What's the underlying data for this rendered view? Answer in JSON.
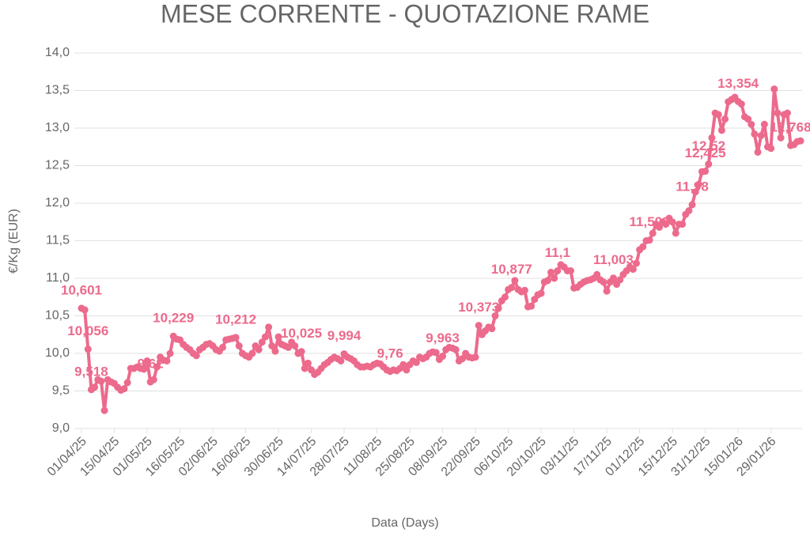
{
  "chart_data": {
    "type": "line",
    "title": "MESE CORRENTE - QUOTAZIONE RAME",
    "x_label": "Data (Days)",
    "y_label": "€/Kg (EUR)",
    "color": "#ec6a8c",
    "grid": true,
    "categories": [
      "01/04/25",
      null,
      null,
      null,
      null,
      null,
      null,
      null,
      null,
      null,
      "15/04/25",
      null,
      null,
      null,
      null,
      null,
      null,
      null,
      null,
      null,
      "01/05/25",
      null,
      null,
      null,
      null,
      null,
      null,
      null,
      null,
      null,
      "16/05/25",
      null,
      null,
      null,
      null,
      null,
      null,
      null,
      null,
      null,
      "02/06/25",
      null,
      null,
      null,
      null,
      null,
      null,
      null,
      null,
      null,
      "16/06/25",
      null,
      null,
      null,
      null,
      null,
      null,
      null,
      null,
      null,
      "30/06/25",
      null,
      null,
      null,
      null,
      null,
      null,
      null,
      null,
      null,
      "14/07/25",
      null,
      null,
      null,
      null,
      null,
      null,
      null,
      null,
      null,
      "28/07/25",
      null,
      null,
      null,
      null,
      null,
      null,
      null,
      null,
      null,
      "11/08/25",
      null,
      null,
      null,
      null,
      null,
      null,
      null,
      null,
      null,
      "25/08/25",
      null,
      null,
      null,
      null,
      null,
      null,
      null,
      null,
      null,
      "08/09/25",
      null,
      null,
      null,
      null,
      null,
      null,
      null,
      null,
      null,
      "22/09/25",
      null,
      null,
      null,
      null,
      null,
      null,
      null,
      null,
      null,
      "06/10/25",
      null,
      null,
      null,
      null,
      null,
      null,
      null,
      null,
      null,
      "20/10/25",
      null,
      null,
      null,
      null,
      null,
      null,
      null,
      null,
      null,
      "03/11/25",
      null,
      null,
      null,
      null,
      null,
      null,
      null,
      null,
      null,
      "17/11/25",
      null,
      null,
      null,
      null,
      null,
      null,
      null,
      null,
      null,
      "01/12/25",
      null,
      null,
      null,
      null,
      null,
      null,
      null,
      null,
      null,
      "15/12/25",
      null,
      null,
      null,
      null,
      null,
      null,
      null,
      null,
      null,
      "31/12/25",
      null,
      null,
      null,
      null,
      null,
      null,
      null,
      null,
      null,
      "15/01/26",
      null,
      null,
      null,
      null,
      null,
      null,
      null,
      null,
      null,
      "29/01/26",
      null,
      null,
      null,
      null,
      null,
      null,
      null,
      null,
      null
    ],
    "values": [
      10.601,
      10.58,
      10.056,
      9.518,
      9.55,
      9.65,
      9.63,
      9.24,
      9.65,
      9.62,
      9.6,
      9.55,
      9.51,
      9.53,
      9.61,
      9.8,
      9.8,
      9.82,
      9.8,
      9.79,
      9.9,
      9.62,
      9.65,
      9.82,
      9.95,
      9.91,
      9.9,
      10.0,
      10.229,
      10.19,
      10.18,
      10.12,
      10.08,
      10.05,
      10.0,
      9.97,
      10.05,
      10.08,
      10.12,
      10.13,
      10.1,
      10.05,
      10.03,
      10.08,
      10.18,
      10.19,
      10.2,
      10.212,
      10.1,
      10.0,
      9.97,
      9.95,
      10.0,
      10.1,
      10.05,
      10.15,
      10.22,
      10.35,
      10.1,
      10.03,
      10.22,
      10.12,
      10.1,
      10.08,
      10.15,
      10.1,
      10.0,
      10.025,
      9.8,
      9.87,
      9.78,
      9.72,
      9.75,
      9.8,
      9.85,
      9.88,
      9.92,
      9.95,
      9.93,
      9.9,
      9.994,
      9.95,
      9.93,
      9.9,
      9.85,
      9.82,
      9.82,
      9.83,
      9.82,
      9.85,
      9.87,
      9.86,
      9.82,
      9.78,
      9.76,
      9.78,
      9.77,
      9.8,
      9.85,
      9.78,
      9.85,
      9.9,
      9.88,
      9.95,
      9.93,
      9.95,
      10.0,
      10.02,
      10.01,
      9.92,
      9.963,
      10.05,
      10.08,
      10.07,
      10.05,
      9.9,
      9.93,
      10.0,
      9.95,
      9.94,
      9.95,
      10.373,
      10.25,
      10.3,
      10.35,
      10.33,
      10.5,
      10.6,
      10.7,
      10.75,
      10.85,
      10.877,
      10.97,
      10.85,
      10.82,
      10.84,
      10.62,
      10.63,
      10.72,
      10.78,
      10.8,
      10.95,
      10.97,
      11.08,
      11.0,
      11.1,
      11.18,
      11.15,
      11.1,
      11.1,
      10.87,
      10.88,
      10.92,
      10.95,
      10.97,
      10.98,
      11.0,
      11.05,
      10.98,
      10.95,
      10.83,
      10.95,
      11.003,
      10.92,
      10.98,
      11.05,
      11.1,
      11.15,
      11.12,
      11.2,
      11.38,
      11.42,
      11.5,
      11.508,
      11.6,
      11.72,
      11.68,
      11.75,
      11.72,
      11.8,
      11.75,
      11.6,
      11.72,
      11.72,
      11.85,
      11.9,
      11.98,
      12.15,
      12.25,
      12.42,
      12.425,
      12.52,
      12.87,
      13.2,
      13.18,
      12.97,
      13.12,
      13.35,
      13.38,
      13.41,
      13.354,
      13.32,
      13.15,
      13.12,
      13.05,
      12.92,
      12.68,
      12.9,
      13.05,
      12.75,
      12.73,
      13.52,
      13.2,
      12.87,
      13.18,
      13.2,
      12.768,
      12.78,
      12.82,
      12.83
    ],
    "value_labels": [
      "10,601",
      null,
      "10,056",
      "9,518",
      null,
      null,
      null,
      null,
      null,
      null,
      null,
      null,
      null,
      null,
      null,
      null,
      null,
      null,
      null,
      null,
      null,
      "9,62",
      null,
      null,
      null,
      null,
      null,
      null,
      "10,229",
      null,
      null,
      null,
      null,
      null,
      null,
      null,
      null,
      null,
      null,
      null,
      null,
      null,
      null,
      null,
      null,
      null,
      null,
      "10,212",
      null,
      null,
      null,
      null,
      null,
      null,
      null,
      null,
      null,
      null,
      null,
      null,
      null,
      null,
      null,
      null,
      null,
      null,
      null,
      "10,025",
      null,
      null,
      null,
      null,
      null,
      null,
      null,
      null,
      null,
      null,
      null,
      null,
      "9,994",
      null,
      null,
      null,
      null,
      null,
      null,
      null,
      null,
      null,
      null,
      null,
      null,
      null,
      "9,76",
      null,
      null,
      null,
      null,
      null,
      null,
      null,
      null,
      null,
      null,
      null,
      null,
      null,
      null,
      null,
      "9,963",
      null,
      null,
      null,
      null,
      null,
      null,
      null,
      null,
      null,
      null,
      "10,373",
      null,
      null,
      null,
      null,
      null,
      null,
      null,
      null,
      null,
      "10,877",
      null,
      null,
      null,
      null,
      null,
      null,
      null,
      null,
      null,
      null,
      null,
      null,
      null,
      "11,1",
      null,
      null,
      null,
      null,
      null,
      null,
      null,
      null,
      null,
      null,
      null,
      null,
      null,
      null,
      null,
      null,
      "11,003",
      null,
      null,
      null,
      null,
      null,
      null,
      null,
      null,
      null,
      null,
      "11,508",
      null,
      null,
      null,
      null,
      null,
      null,
      null,
      null,
      null,
      null,
      null,
      null,
      "11,98",
      null,
      null,
      null,
      "12,425",
      "12,52",
      null,
      null,
      null,
      null,
      null,
      null,
      null,
      null,
      "13,354",
      null,
      null,
      null,
      null,
      null,
      null,
      null,
      null,
      null,
      null,
      null,
      null,
      null,
      null,
      null,
      "12,768",
      null,
      null,
      null
    ],
    "ylim": [
      9,
      14
    ],
    "yticks": [
      {
        "value": 9,
        "label": "9,0"
      },
      {
        "value": 9.5,
        "label": "9,5"
      },
      {
        "value": 10,
        "label": "10,0"
      },
      {
        "value": 10.5,
        "label": "10,5"
      },
      {
        "value": 11,
        "label": "11,0"
      },
      {
        "value": 11.5,
        "label": "11,5"
      },
      {
        "value": 12,
        "label": "12,0"
      },
      {
        "value": 12.5,
        "label": "12,5"
      },
      {
        "value": 13,
        "label": "13,0"
      },
      {
        "value": 13.5,
        "label": "13,5"
      },
      {
        "value": 14,
        "label": "14,0"
      }
    ]
  }
}
